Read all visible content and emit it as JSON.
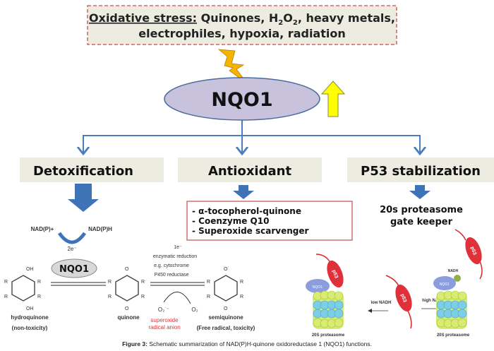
{
  "stress": {
    "label": "Oxidative stress:",
    "line1_rest": "Quinones, H",
    "sub2a": "2",
    "o": "O",
    "sub2b": "2",
    "line1_end": ", heavy metals,",
    "line2": "electrophiles, hypoxia, radiation"
  },
  "center": {
    "label": "NQO1"
  },
  "functions": [
    {
      "label": "Detoxification"
    },
    {
      "label": "Antioxidant"
    },
    {
      "label": "P53 stabilization"
    }
  ],
  "antioxidant_list": [
    "- α-tocopherol-quinone",
    "- Coenzyme Q10",
    "- Superoxide scarvenger"
  ],
  "p53_desc": [
    "20s proteasome",
    "gate keeper"
  ],
  "chem": {
    "nadp_plus": "NAD(P)+",
    "nadph": "NAD(P)H",
    "two_e": "2e⁻",
    "enzyme": "NQO1",
    "one_e": "1e⁻",
    "enzymatic": [
      "enzymatic reduction",
      "e.g. cytochrome",
      "P450 reductase"
    ],
    "o2_radical": "O₂˙⁻",
    "o2": "O₂",
    "superoxide": [
      "superoxide",
      "radical anion"
    ],
    "hydroquinone": [
      "hydroquinone",
      "(non-toxicity)"
    ],
    "quinone": "quinone",
    "semiquinone": [
      "semiquinone",
      "(Free radical, toxicity)"
    ],
    "r": "R",
    "oh": "OH",
    "o_atom": "O",
    "o_rad": "O˙"
  },
  "proteasome": {
    "p53": "p53",
    "nqo1": "NQO1",
    "nadh": "NADH",
    "low": "low NADH",
    "high": "high NADH",
    "label": "20S proteasome"
  },
  "caption": {
    "prefix": "Figure 3:",
    "text": " Schematic summarization of NAD(P)H-quinone oxidoreductase 1 (NQO1) functions."
  },
  "colors": {
    "arrow_blue": "#4a7dbd",
    "ellipse": "#c8c2dd",
    "box_fill": "#ecece0",
    "red": "#e0313a",
    "yellow": "#ffff00"
  }
}
